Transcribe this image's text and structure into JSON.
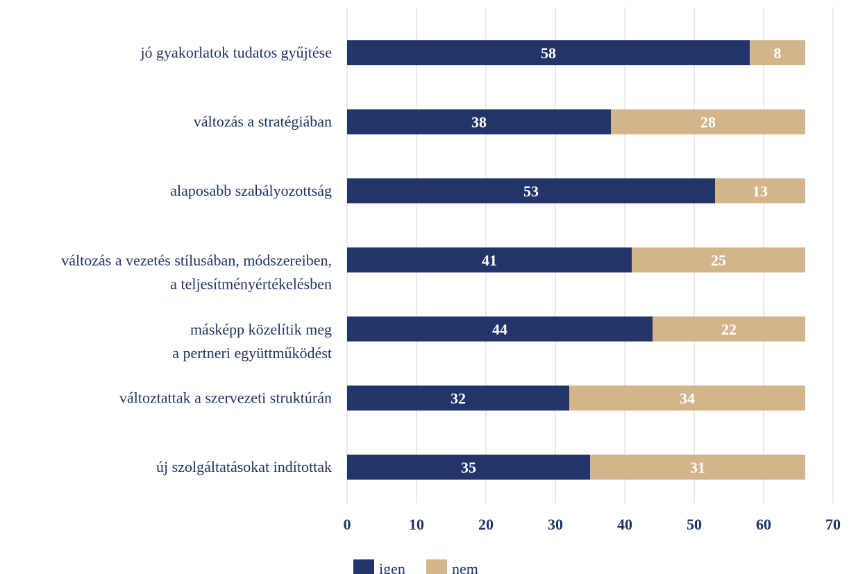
{
  "colors": {
    "igen": "#22346a",
    "nem": "#d4b48a",
    "text": "#1f3366",
    "grid": "#e3e3e3"
  },
  "chart_data": {
    "type": "bar",
    "orientation": "horizontal",
    "stacked": true,
    "categories": [
      [
        "jó gyakorlatok tudatos gyűjtése"
      ],
      [
        "változás a stratégiában"
      ],
      [
        "alaposabb szabályozottság"
      ],
      [
        "változás a vezetés stílusában, módszereiben,",
        "a teljesítményértékelésben"
      ],
      [
        "másképp közelítik meg",
        "a pertneri együttműködést"
      ],
      [
        "változtattak a szervezeti struktúrán"
      ],
      [
        "új szolgáltatásokat indítottak"
      ]
    ],
    "series": [
      {
        "name": "igen",
        "values": [
          58,
          38,
          53,
          41,
          44,
          32,
          35
        ]
      },
      {
        "name": "nem",
        "values": [
          8,
          28,
          13,
          25,
          22,
          34,
          31
        ]
      }
    ],
    "xlim": [
      0,
      70
    ],
    "xticks": [
      "0",
      "10",
      "20",
      "30",
      "40",
      "50",
      "60",
      "70"
    ],
    "grid": "vertical",
    "legend": "bottom"
  }
}
